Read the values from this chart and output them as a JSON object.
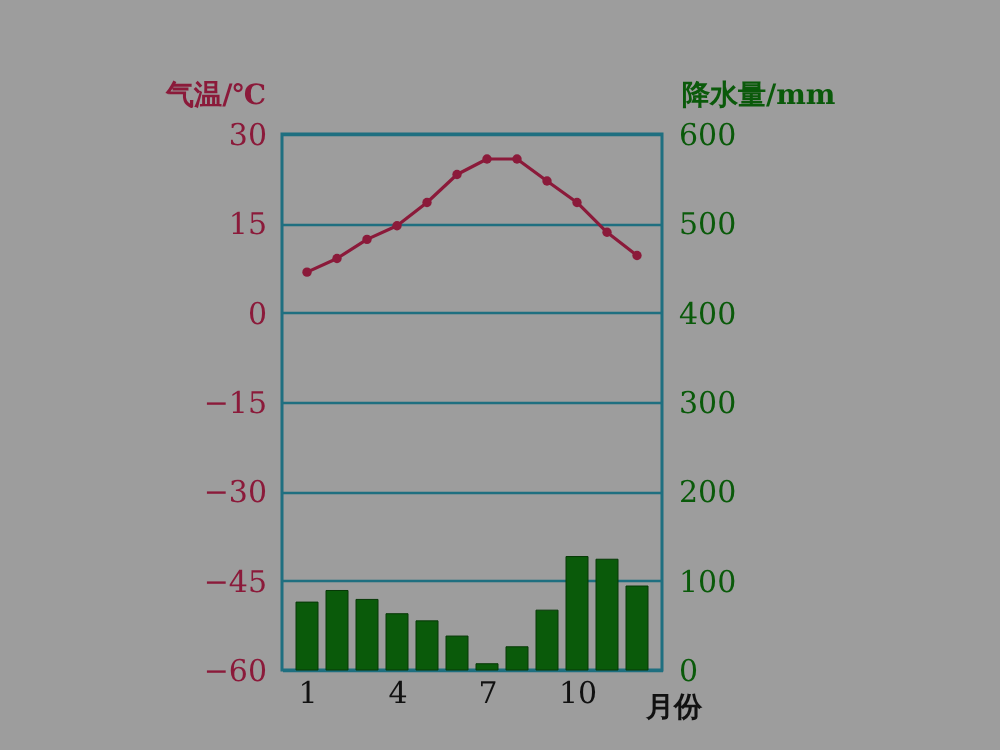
{
  "chart_data": {
    "type": "bar",
    "x": [
      1,
      2,
      3,
      4,
      5,
      6,
      7,
      8,
      9,
      10,
      11,
      12
    ],
    "xlabel": "月份",
    "ylabel": "气温/℃",
    "y2label": "降水量/mm",
    "series": [
      {
        "type": "line",
        "axis": "y",
        "color": "#8b1a3a",
        "marker": "circle",
        "values": [
          6.8,
          9.1,
          12.3,
          14.6,
          18.5,
          23.2,
          25.8,
          25.8,
          22.1,
          18.5,
          13.5,
          9.6
        ]
      },
      {
        "axis": "y2",
        "color": "#0a5a0a",
        "values": [
          76,
          89,
          79,
          63,
          55,
          38,
          7,
          26,
          67,
          127,
          124,
          94
        ]
      }
    ],
    "xlim": [
      0.5,
      12.5
    ],
    "xticks": [
      1,
      4,
      7,
      10
    ],
    "ylim": [
      -60,
      30
    ],
    "yticks": [
      -60,
      -45,
      -30,
      -15,
      0,
      15,
      30
    ],
    "y2lim": [
      0,
      600
    ],
    "y2ticks": [
      0,
      100,
      200,
      300,
      400,
      500,
      600
    ],
    "grid": "y"
  }
}
